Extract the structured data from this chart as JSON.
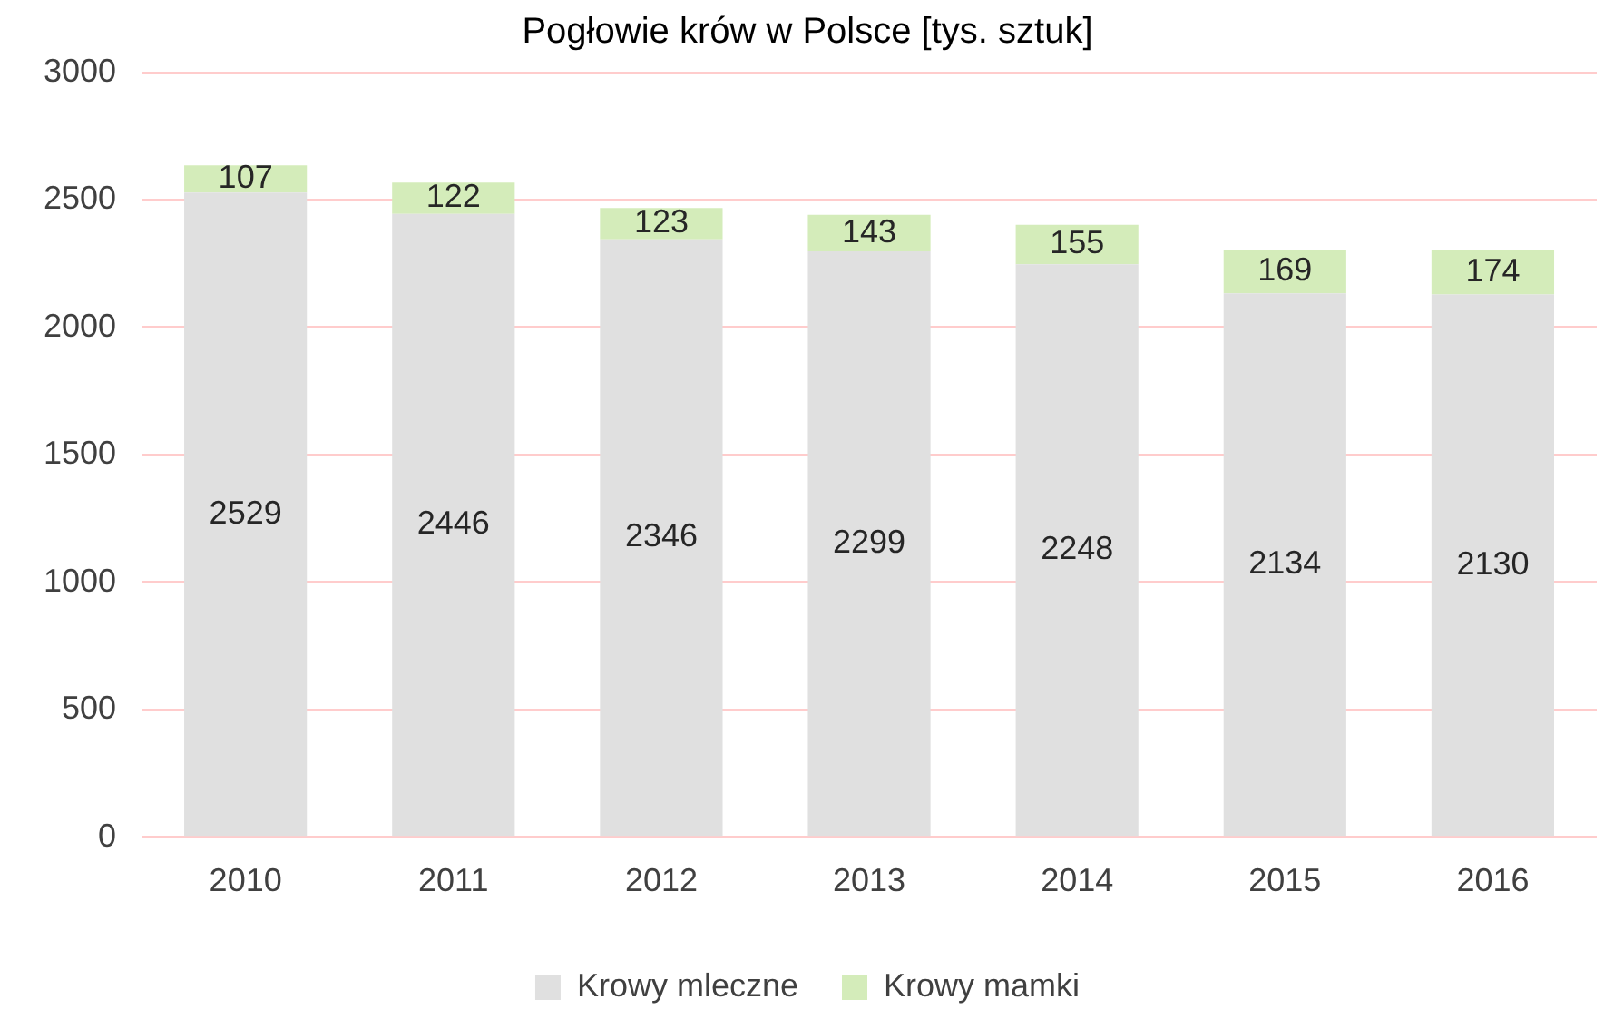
{
  "chart_data": {
    "type": "bar",
    "title": "Pogłowie krów w Polsce [tys. sztuk]",
    "categories": [
      "2010",
      "2011",
      "2012",
      "2013",
      "2014",
      "2015",
      "2016"
    ],
    "series": [
      {
        "name": "Krowy mleczne",
        "color": "#e0e0e0",
        "values": [
          2529,
          2446,
          2346,
          2299,
          2248,
          2134,
          2130
        ]
      },
      {
        "name": "Krowy mamki",
        "color": "#d4ecba",
        "values": [
          107,
          122,
          123,
          143,
          155,
          169,
          174
        ]
      }
    ],
    "stacked": true,
    "ylim": [
      0,
      3000
    ],
    "yticks": [
      0,
      500,
      1000,
      1500,
      2000,
      2500,
      3000
    ],
    "grid": "y",
    "legend": "bottom",
    "data_labels": true
  }
}
